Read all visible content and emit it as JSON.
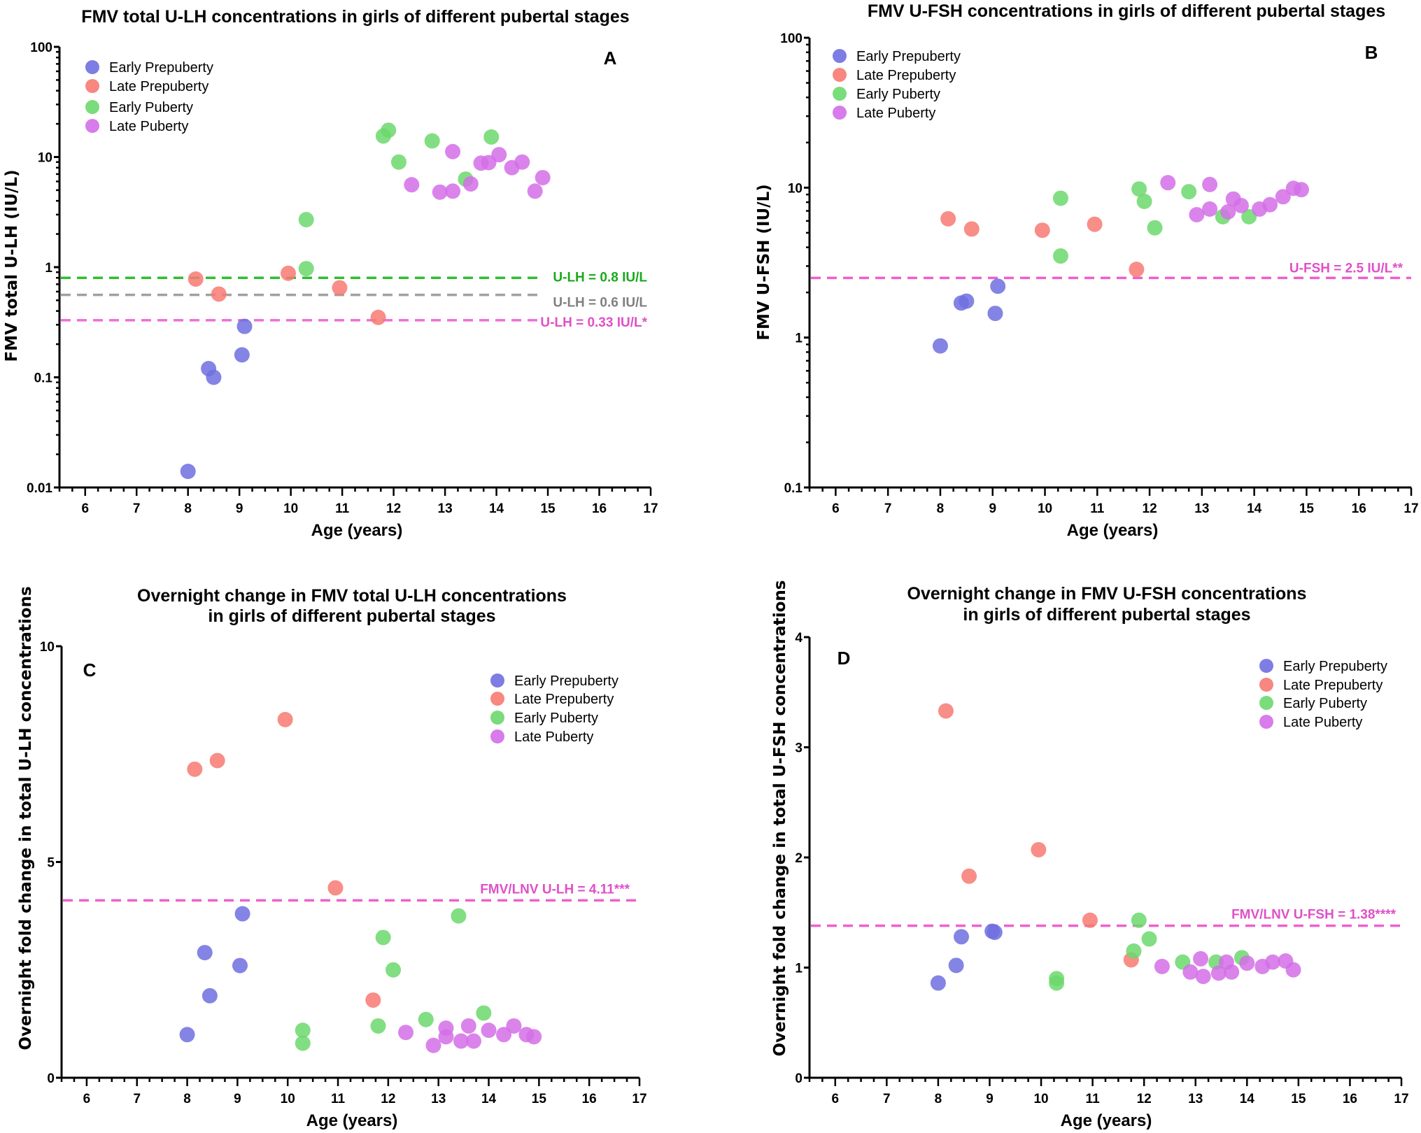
{
  "colors": {
    "Early Prepuberty": "#6f6fe0",
    "Late Prepuberty": "#f77a72",
    "Early Puberty": "#6cd86c",
    "Late Puberty": "#d36ee8"
  },
  "chart_data": [
    {
      "id": "A",
      "type": "scatter",
      "letter": "A",
      "title": "FMV total U-LH concentrations in girls of different pubertal stages",
      "xlabel": "Age (years)",
      "ylabel": "FMV total U-LH  (IU/L)",
      "yscale": "log",
      "xlim": [
        5.5,
        17
      ],
      "ylim": [
        0.01,
        100
      ],
      "xticks": [
        "6",
        "7",
        "8",
        "9",
        "10",
        "11",
        "12",
        "13",
        "14",
        "15",
        "16",
        "17"
      ],
      "yticks": [
        "0.01",
        "0.1",
        "1",
        "10",
        "100"
      ],
      "legend_position": "top-left",
      "legend": [
        "Early Prepuberty",
        "Late Prepuberty",
        "Early Puberty",
        "Late Puberty"
      ],
      "reference_lines": [
        {
          "value": 0.8,
          "label": "U-LH = 0.8 IU/L",
          "color": "#2fbf2f",
          "label_color": "#1aaa1a"
        },
        {
          "value": 0.56,
          "label": "U-LH = 0.6 IU/L",
          "color": "#a0a0a0",
          "label_color": "#808080"
        },
        {
          "value": 0.33,
          "label": "U-LH = 0.33 IU/L*",
          "color": "#ee6fd8",
          "label_color": "#e050c8"
        }
      ],
      "series": [
        {
          "name": "Early Prepuberty",
          "points": [
            [
              8.0,
              0.014
            ],
            [
              8.4,
              0.12
            ],
            [
              8.5,
              0.1
            ],
            [
              9.05,
              0.16
            ],
            [
              9.1,
              0.29
            ]
          ]
        },
        {
          "name": "Late Prepuberty",
          "points": [
            [
              8.15,
              0.78
            ],
            [
              8.6,
              0.57
            ],
            [
              9.95,
              0.88
            ],
            [
              10.95,
              0.65
            ],
            [
              11.7,
              0.35
            ]
          ]
        },
        {
          "name": "Early Puberty",
          "points": [
            [
              10.3,
              0.97
            ],
            [
              10.3,
              2.7
            ],
            [
              11.8,
              15.5
            ],
            [
              11.9,
              17.5
            ],
            [
              12.1,
              9.0
            ],
            [
              12.75,
              14.0
            ],
            [
              13.4,
              6.3
            ],
            [
              13.9,
              15.2
            ]
          ]
        },
        {
          "name": "Late Puberty",
          "points": [
            [
              12.35,
              5.6
            ],
            [
              12.9,
              4.8
            ],
            [
              13.15,
              4.9
            ],
            [
              13.15,
              11.2
            ],
            [
              13.5,
              5.7
            ],
            [
              13.7,
              8.8
            ],
            [
              13.85,
              8.9
            ],
            [
              14.05,
              10.5
            ],
            [
              14.3,
              8.0
            ],
            [
              14.5,
              9.0
            ],
            [
              14.75,
              4.9
            ],
            [
              14.9,
              6.5
            ]
          ]
        }
      ]
    },
    {
      "id": "B",
      "type": "scatter",
      "letter": "B",
      "title": "FMV U-FSH concentrations in girls of different pubertal stages",
      "xlabel": "Age (years)",
      "ylabel": "FMV U-FSH (IU/L)",
      "yscale": "log",
      "xlim": [
        5.5,
        17
      ],
      "ylim": [
        0.1,
        100
      ],
      "xticks": [
        "6",
        "7",
        "8",
        "9",
        "10",
        "11",
        "12",
        "13",
        "14",
        "15",
        "16",
        "17"
      ],
      "yticks": [
        "0.1",
        "1",
        "10",
        "100"
      ],
      "legend_position": "top-left",
      "legend": [
        "Early Prepuberty",
        "Late Prepuberty",
        "Early Puberty",
        "Late Puberty"
      ],
      "reference_lines": [
        {
          "value": 2.5,
          "label": "U-FSH = 2.5 IU/L**",
          "color": "#ee5fd0",
          "label_color": "#e050c8"
        }
      ],
      "series": [
        {
          "name": "Early Prepuberty",
          "points": [
            [
              8.0,
              0.88
            ],
            [
              8.4,
              1.7
            ],
            [
              8.5,
              1.75
            ],
            [
              9.05,
              1.45
            ],
            [
              9.1,
              2.2
            ]
          ]
        },
        {
          "name": "Late Prepuberty",
          "points": [
            [
              8.15,
              6.2
            ],
            [
              8.6,
              5.3
            ],
            [
              9.95,
              5.2
            ],
            [
              10.95,
              5.7
            ],
            [
              11.75,
              2.85
            ]
          ]
        },
        {
          "name": "Early Puberty",
          "points": [
            [
              10.3,
              8.5
            ],
            [
              10.3,
              3.5
            ],
            [
              11.8,
              9.8
            ],
            [
              11.9,
              8.1
            ],
            [
              12.1,
              5.4
            ],
            [
              12.75,
              9.4
            ],
            [
              13.4,
              6.4
            ],
            [
              13.9,
              6.4
            ]
          ]
        },
        {
          "name": "Late Puberty",
          "points": [
            [
              12.35,
              10.8
            ],
            [
              12.9,
              6.6
            ],
            [
              13.15,
              7.2
            ],
            [
              13.15,
              10.5
            ],
            [
              13.5,
              6.9
            ],
            [
              13.6,
              8.4
            ],
            [
              13.75,
              7.6
            ],
            [
              14.1,
              7.2
            ],
            [
              14.3,
              7.7
            ],
            [
              14.55,
              8.7
            ],
            [
              14.75,
              9.9
            ],
            [
              14.9,
              9.7
            ]
          ]
        }
      ]
    },
    {
      "id": "C",
      "type": "scatter",
      "letter": "C",
      "title": [
        "Overnight change in FMV total U-LH concentrations",
        "in girls of different pubertal stages"
      ],
      "xlabel": "Age (years)",
      "ylabel": "Overnight fold change in total U-LH concentrations",
      "yscale": "linear",
      "xlim": [
        5.5,
        17
      ],
      "ylim": [
        0,
        10
      ],
      "xticks": [
        "6",
        "7",
        "8",
        "9",
        "10",
        "11",
        "12",
        "13",
        "14",
        "15",
        "16",
        "17"
      ],
      "yticks": [
        "0",
        "5",
        "10"
      ],
      "legend_position": "top-right",
      "legend": [
        "Early Prepuberty",
        "Late Prepuberty",
        "Early Puberty",
        "Late Puberty"
      ],
      "reference_lines": [
        {
          "value": 4.11,
          "label": "FMV/LNV U-LH = 4.11***",
          "color": "#ee5fd0",
          "label_color": "#e050c8"
        }
      ],
      "series": [
        {
          "name": "Early Prepuberty",
          "points": [
            [
              8.0,
              1.0
            ],
            [
              8.35,
              2.9
            ],
            [
              8.45,
              1.9
            ],
            [
              9.05,
              2.6
            ],
            [
              9.1,
              3.8
            ]
          ]
        },
        {
          "name": "Late Prepuberty",
          "points": [
            [
              8.15,
              7.15
            ],
            [
              8.6,
              7.35
            ],
            [
              9.95,
              8.3
            ],
            [
              10.95,
              4.4
            ],
            [
              11.7,
              1.8
            ]
          ]
        },
        {
          "name": "Early Puberty",
          "points": [
            [
              10.3,
              1.1
            ],
            [
              10.3,
              0.8
            ],
            [
              11.8,
              1.2
            ],
            [
              11.9,
              3.25
            ],
            [
              12.1,
              2.5
            ],
            [
              12.75,
              1.35
            ],
            [
              13.4,
              3.75
            ],
            [
              13.9,
              1.5
            ]
          ]
        },
        {
          "name": "Late Puberty",
          "points": [
            [
              12.35,
              1.05
            ],
            [
              12.9,
              0.75
            ],
            [
              13.15,
              1.15
            ],
            [
              13.15,
              0.95
            ],
            [
              13.45,
              0.85
            ],
            [
              13.6,
              1.2
            ],
            [
              13.7,
              0.85
            ],
            [
              14.0,
              1.1
            ],
            [
              14.3,
              1.0
            ],
            [
              14.5,
              1.2
            ],
            [
              14.75,
              1.0
            ],
            [
              14.9,
              0.95
            ]
          ]
        }
      ]
    },
    {
      "id": "D",
      "type": "scatter",
      "letter": "D",
      "title": [
        "Overnight change in FMV U-FSH concentrations",
        "in girls of different pubertal stages"
      ],
      "xlabel": "Age (years)",
      "ylabel": "Overnight fold change in total U-FSH concentrations",
      "yscale": "linear",
      "xlim": [
        5.5,
        17
      ],
      "ylim": [
        0,
        4
      ],
      "xticks": [
        "6",
        "7",
        "8",
        "9",
        "10",
        "11",
        "12",
        "13",
        "14",
        "15",
        "16",
        "17"
      ],
      "yticks": [
        "0",
        "1",
        "2",
        "3",
        "4"
      ],
      "legend_position": "top-right",
      "legend": [
        "Early Prepuberty",
        "Late Prepuberty",
        "Early Puberty",
        "Late Puberty"
      ],
      "reference_lines": [
        {
          "value": 1.38,
          "label": "FMV/LNV U-FSH = 1.38****",
          "color": "#ee5fd0",
          "label_color": "#e050c8"
        }
      ],
      "series": [
        {
          "name": "Early Prepuberty",
          "points": [
            [
              8.0,
              0.86
            ],
            [
              8.35,
              1.02
            ],
            [
              8.45,
              1.28
            ],
            [
              9.05,
              1.33
            ],
            [
              9.1,
              1.32
            ]
          ]
        },
        {
          "name": "Late Prepuberty",
          "points": [
            [
              8.15,
              3.33
            ],
            [
              8.6,
              1.83
            ],
            [
              9.95,
              2.07
            ],
            [
              10.95,
              1.43
            ],
            [
              11.75,
              1.07
            ]
          ]
        },
        {
          "name": "Early Puberty",
          "points": [
            [
              10.3,
              0.9
            ],
            [
              10.3,
              0.86
            ],
            [
              11.8,
              1.15
            ],
            [
              11.9,
              1.43
            ],
            [
              12.1,
              1.26
            ],
            [
              12.75,
              1.05
            ],
            [
              13.4,
              1.05
            ],
            [
              13.9,
              1.09
            ]
          ]
        },
        {
          "name": "Late Puberty",
          "points": [
            [
              12.35,
              1.01
            ],
            [
              12.9,
              0.96
            ],
            [
              13.1,
              1.08
            ],
            [
              13.15,
              0.92
            ],
            [
              13.45,
              0.95
            ],
            [
              13.6,
              1.05
            ],
            [
              13.7,
              0.96
            ],
            [
              14.0,
              1.04
            ],
            [
              14.3,
              1.01
            ],
            [
              14.5,
              1.05
            ],
            [
              14.75,
              1.06
            ],
            [
              14.9,
              0.98
            ]
          ]
        }
      ]
    }
  ]
}
